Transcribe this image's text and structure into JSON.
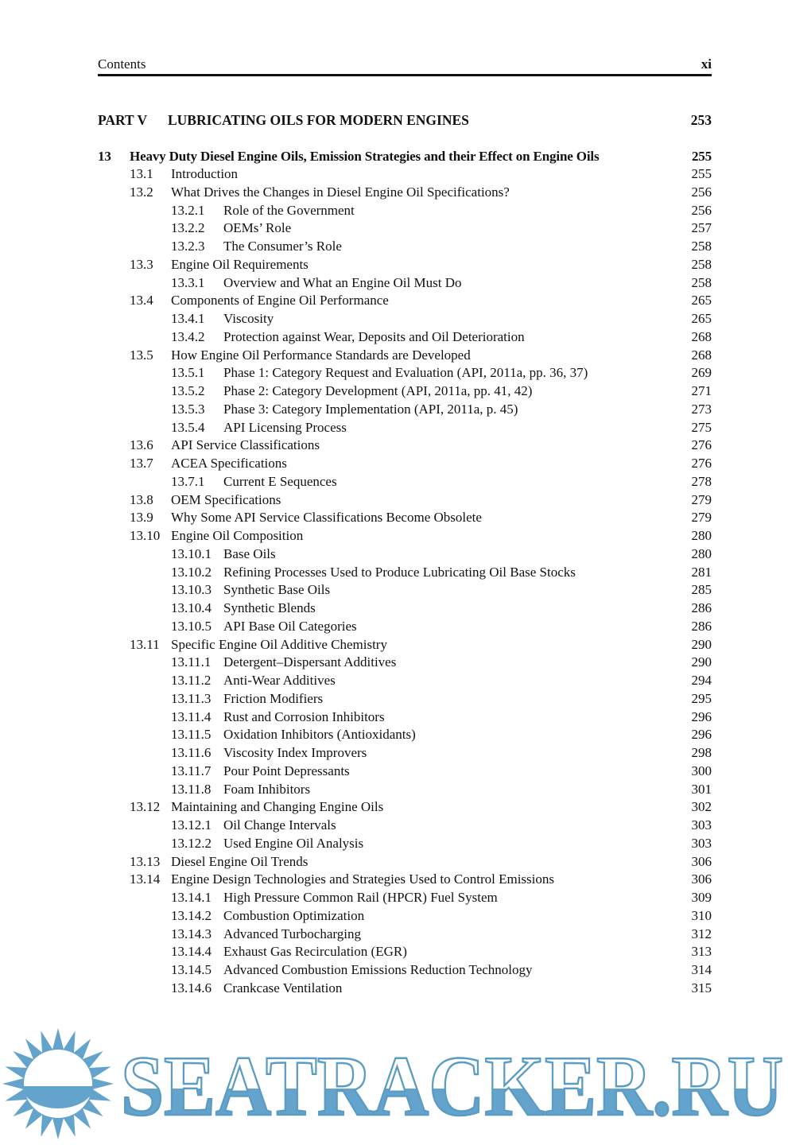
{
  "header": {
    "left": "Contents",
    "right": "xi"
  },
  "part": {
    "label": "PART V",
    "title": "LUBRICATING OILS FOR MODERN ENGINES",
    "page": "253"
  },
  "chapter": {
    "number": "13",
    "title": "Heavy Duty Diesel Engine Oils, Emission Strategies and their Effect on Engine Oils",
    "page": "255"
  },
  "entries": [
    {
      "num": "13.1",
      "title": "Introduction",
      "page": "255",
      "level": 1
    },
    {
      "num": "13.2",
      "title": "What Drives the Changes in Diesel Engine Oil Specifications?",
      "page": "256",
      "level": 1
    },
    {
      "num": "13.2.1",
      "title": "Role of the Government",
      "page": "256",
      "level": 2
    },
    {
      "num": "13.2.2",
      "title": "OEMs’ Role",
      "page": "257",
      "level": 2
    },
    {
      "num": "13.2.3",
      "title": "The Consumer’s Role",
      "page": "258",
      "level": 2
    },
    {
      "num": "13.3",
      "title": "Engine Oil Requirements",
      "page": "258",
      "level": 1
    },
    {
      "num": "13.3.1",
      "title": "Overview and What an Engine Oil Must Do",
      "page": "258",
      "level": 2
    },
    {
      "num": "13.4",
      "title": "Components of Engine Oil Performance",
      "page": "265",
      "level": 1
    },
    {
      "num": "13.4.1",
      "title": "Viscosity",
      "page": "265",
      "level": 2
    },
    {
      "num": "13.4.2",
      "title": "Protection against Wear, Deposits and Oil Deterioration",
      "page": "268",
      "level": 2
    },
    {
      "num": "13.5",
      "title": "How Engine Oil Performance Standards are Developed",
      "page": "268",
      "level": 1
    },
    {
      "num": "13.5.1",
      "title": "Phase 1: Category Request and Evaluation (API, 2011a, pp. 36, 37)",
      "page": "269",
      "level": 2
    },
    {
      "num": "13.5.2",
      "title": "Phase 2: Category Development (API, 2011a, pp. 41, 42)",
      "page": "271",
      "level": 2
    },
    {
      "num": "13.5.3",
      "title": "Phase 3: Category Implementation (API, 2011a, p. 45)",
      "page": "273",
      "level": 2
    },
    {
      "num": "13.5.4",
      "title": "API Licensing Process",
      "page": "275",
      "level": 2
    },
    {
      "num": "13.6",
      "title": "API Service Classifications",
      "page": "276",
      "level": 1
    },
    {
      "num": "13.7",
      "title": "ACEA Specifications",
      "page": "276",
      "level": 1
    },
    {
      "num": "13.7.1",
      "title": "Current E Sequences",
      "page": "278",
      "level": 2
    },
    {
      "num": "13.8",
      "title": "OEM Specifications",
      "page": "279",
      "level": 1
    },
    {
      "num": "13.9",
      "title": "Why Some API Service Classifications Become Obsolete",
      "page": "279",
      "level": 1
    },
    {
      "num": "13.10",
      "title": "Engine Oil Composition",
      "page": "280",
      "level": 1
    },
    {
      "num": "13.10.1",
      "title": "Base Oils",
      "page": "280",
      "level": 2
    },
    {
      "num": "13.10.2",
      "title": "Refining Processes Used to Produce Lubricating Oil Base Stocks",
      "page": "281",
      "level": 2
    },
    {
      "num": "13.10.3",
      "title": "Synthetic Base Oils",
      "page": "285",
      "level": 2
    },
    {
      "num": "13.10.4",
      "title": "Synthetic Blends",
      "page": "286",
      "level": 2
    },
    {
      "num": "13.10.5",
      "title": "API Base Oil Categories",
      "page": "286",
      "level": 2
    },
    {
      "num": "13.11",
      "title": "Specific Engine Oil Additive Chemistry",
      "page": "290",
      "level": 1
    },
    {
      "num": "13.11.1",
      "title": "Detergent–Dispersant Additives",
      "page": "290",
      "level": 2
    },
    {
      "num": "13.11.2",
      "title": "Anti-Wear Additives",
      "page": "294",
      "level": 2
    },
    {
      "num": "13.11.3",
      "title": "Friction Modifiers",
      "page": "295",
      "level": 2
    },
    {
      "num": "13.11.4",
      "title": "Rust and Corrosion Inhibitors",
      "page": "296",
      "level": 2
    },
    {
      "num": "13.11.5",
      "title": "Oxidation Inhibitors (Antioxidants)",
      "page": "296",
      "level": 2
    },
    {
      "num": "13.11.6",
      "title": "Viscosity Index Improvers",
      "page": "298",
      "level": 2
    },
    {
      "num": "13.11.7",
      "title": "Pour Point Depressants",
      "page": "300",
      "level": 2
    },
    {
      "num": "13.11.8",
      "title": "Foam Inhibitors",
      "page": "301",
      "level": 2
    },
    {
      "num": "13.12",
      "title": "Maintaining and Changing Engine Oils",
      "page": "302",
      "level": 1
    },
    {
      "num": "13.12.1",
      "title": "Oil Change Intervals",
      "page": "303",
      "level": 2
    },
    {
      "num": "13.12.2",
      "title": "Used Engine Oil Analysis",
      "page": "303",
      "level": 2
    },
    {
      "num": "13.13",
      "title": "Diesel Engine Oil Trends",
      "page": "306",
      "level": 1
    },
    {
      "num": "13.14",
      "title": "Engine Design Technologies and Strategies Used to Control Emissions",
      "page": "306",
      "level": 1
    },
    {
      "num": "13.14.1",
      "title": "High Pressure Common Rail (HPCR) Fuel System",
      "page": "309",
      "level": 2
    },
    {
      "num": "13.14.2",
      "title": "Combustion Optimization",
      "page": "310",
      "level": 2
    },
    {
      "num": "13.14.3",
      "title": "Advanced Turbocharging",
      "page": "312",
      "level": 2
    },
    {
      "num": "13.14.4",
      "title": "Exhaust Gas Recirculation (EGR)",
      "page": "313",
      "level": 2
    },
    {
      "num": "13.14.5",
      "title": "Advanced Combustion Emissions Reduction Technology",
      "page": "314",
      "level": 2
    },
    {
      "num": "13.14.6",
      "title": "Crankcase Ventilation",
      "page": "315",
      "level": 2
    }
  ],
  "watermark": {
    "text": "SEATRACKER.RU",
    "color": "#64a3cb",
    "stroke_color": "#5b9cc4",
    "logo": "sun-over-sea-icon"
  }
}
